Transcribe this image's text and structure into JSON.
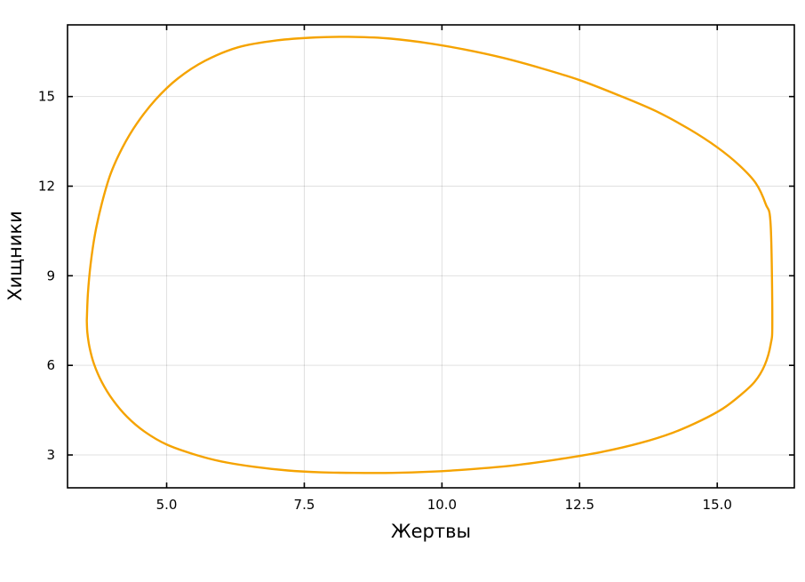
{
  "chart_data": {
    "type": "line",
    "title": "",
    "xlabel": "Жертвы",
    "ylabel": "Хищники",
    "xlim": [
      3.2,
      16.4
    ],
    "ylim": [
      1.9,
      17.4
    ],
    "xticks": [
      5.0,
      7.5,
      10.0,
      12.5,
      15.0
    ],
    "xtick_labels": [
      "5.0",
      "7.5",
      "10.0",
      "12.5",
      "15.0"
    ],
    "yticks": [
      3,
      6,
      9,
      12,
      15
    ],
    "ytick_labels": [
      "3",
      "6",
      "9",
      "12",
      "15"
    ],
    "grid": true,
    "legend": false,
    "colors": {
      "series": "#f5a300",
      "frame": "#000000",
      "grid": "#d9d9d9"
    },
    "series": [
      {
        "color": "#f5a300",
        "x": [
          3.55,
          3.57,
          3.62,
          3.7,
          3.82,
          3.98,
          4.2,
          4.46,
          4.8,
          5.2,
          5.7,
          6.3,
          7.0,
          7.7,
          8.3,
          9.0,
          9.7,
          10.4,
          11.1,
          11.8,
          12.5,
          13.2,
          13.9,
          14.5,
          15.0,
          15.4,
          15.7,
          15.88,
          15.97,
          16.0,
          15.97,
          15.86,
          15.68,
          15.42,
          15.1,
          14.7,
          14.2,
          13.6,
          12.9,
          12.1,
          11.3,
          10.5,
          9.8,
          9.1,
          8.4,
          7.8,
          7.2,
          6.6,
          6.0,
          5.5,
          5.0,
          4.6,
          4.28,
          4.02,
          3.82,
          3.68,
          3.6,
          3.56,
          3.55
        ],
        "y": [
          7.5,
          8.4,
          9.4,
          10.4,
          11.4,
          12.4,
          13.3,
          14.1,
          14.9,
          15.6,
          16.2,
          16.65,
          16.88,
          16.98,
          17.0,
          16.95,
          16.8,
          16.58,
          16.3,
          15.95,
          15.55,
          15.05,
          14.5,
          13.9,
          13.3,
          12.7,
          12.1,
          11.4,
          10.7,
          7.5,
          6.7,
          6.0,
          5.45,
          5.0,
          4.55,
          4.15,
          3.75,
          3.4,
          3.1,
          2.85,
          2.65,
          2.52,
          2.44,
          2.4,
          2.4,
          2.42,
          2.48,
          2.6,
          2.78,
          3.02,
          3.35,
          3.78,
          4.28,
          4.85,
          5.45,
          6.05,
          6.6,
          7.1,
          7.5
        ]
      }
    ]
  }
}
